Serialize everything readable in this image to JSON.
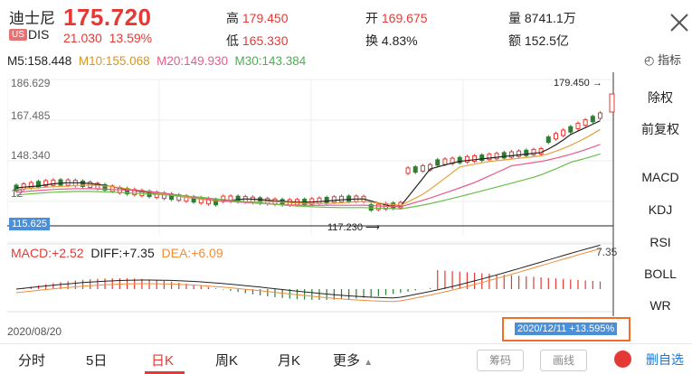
{
  "quote": {
    "name": "迪士尼",
    "price": "175.720",
    "market_badge": "US",
    "ticker": "DIS",
    "change": "21.030",
    "change_pct": "13.59%"
  },
  "stats": {
    "high_label": "高",
    "high_value": "179.450",
    "low_label": "低",
    "low_value": "165.330",
    "open_label": "开",
    "open_value": "169.675",
    "turnover_label": "换",
    "turnover_value": "4.83%",
    "volume_label": "量",
    "volume_value": "8741.1万",
    "amount_label": "额",
    "amount_value": "152.5亿"
  },
  "ma": {
    "m5": "M5:158.448",
    "m10": "M10:155.068",
    "m20": "M20:149.930",
    "m30": "M30:143.384"
  },
  "indicator_label": "指标",
  "price_axis": [
    "186.629",
    "167.485",
    "148.340",
    "12"
  ],
  "labels": {
    "high_marker": "179.450",
    "low_marker": "117.230",
    "low_tag": "115.625"
  },
  "macd": {
    "macd": "MACD:+2.52",
    "diff": "DIFF:+7.35",
    "dea": "DEA:+6.09",
    "top_value": "7.35"
  },
  "side_menu": [
    "除权",
    "前复权",
    "MACD",
    "KDJ",
    "RSI",
    "BOLL",
    "WR"
  ],
  "side_active": [
    "前复权",
    "MACD"
  ],
  "date_label": "2020/08/20",
  "readout": "2020/12/11 +13.595%",
  "tabs": {
    "t1": "分时",
    "t2": "5日",
    "t3": "日K",
    "t4": "周K",
    "t5": "月K",
    "t6": "更多"
  },
  "buttons": {
    "chips": "筹码",
    "draw": "画线",
    "edit_picks": "删自选"
  },
  "colors": {
    "up": "#e53935",
    "down": "#2e7d32",
    "m5": "#222222",
    "m10": "#e6a23c",
    "m20": "#e85a8a",
    "m30": "#6abf4b",
    "diff": "#222222",
    "dea": "#f08c3a"
  }
}
